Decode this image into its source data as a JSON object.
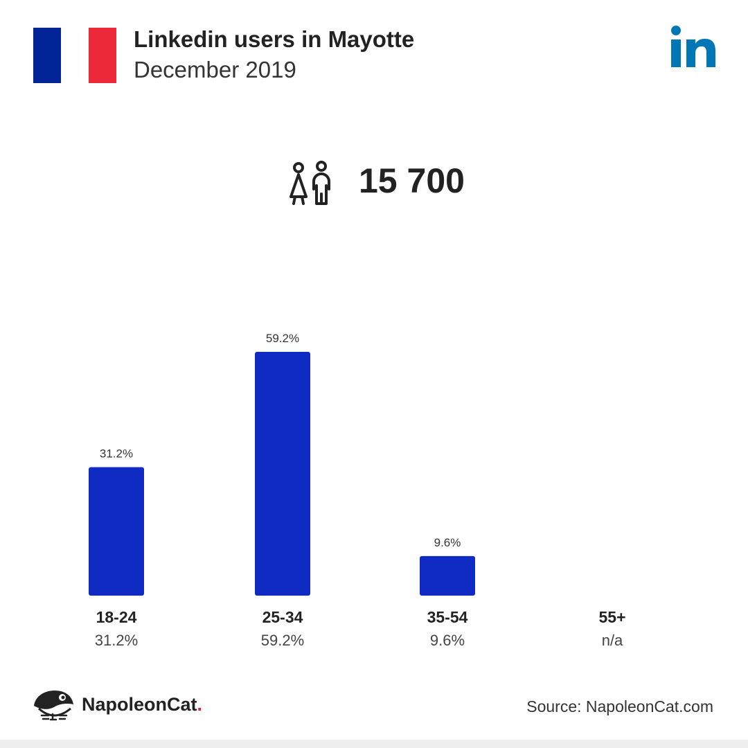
{
  "header": {
    "title": "Linkedin users in Mayotte",
    "subtitle": "December 2019",
    "flag_colors": [
      "#002395",
      "#ffffff",
      "#ed2939"
    ],
    "platform_icon": "linkedin-icon",
    "platform_color": "#0077b5"
  },
  "summary": {
    "icon": "users-icon",
    "total_users": "15 700"
  },
  "chart_data": {
    "type": "bar",
    "categories": [
      "18-24",
      "25-34",
      "35-54",
      "55+"
    ],
    "values": [
      31.2,
      59.2,
      9.6,
      null
    ],
    "bar_labels": [
      "31.2%",
      "59.2%",
      "9.6%",
      ""
    ],
    "category_values": [
      "31.2%",
      "59.2%",
      "9.6%",
      "n/a"
    ],
    "unit": "%",
    "ylim": [
      0,
      59.2
    ],
    "bar_color": "#102ac4",
    "grid": false
  },
  "footer": {
    "brand": "NapoleonCat",
    "brand_dot": ".",
    "brand_icon": "napoleoncat-logo-icon",
    "source": "Source: NapoleonCat.com"
  }
}
